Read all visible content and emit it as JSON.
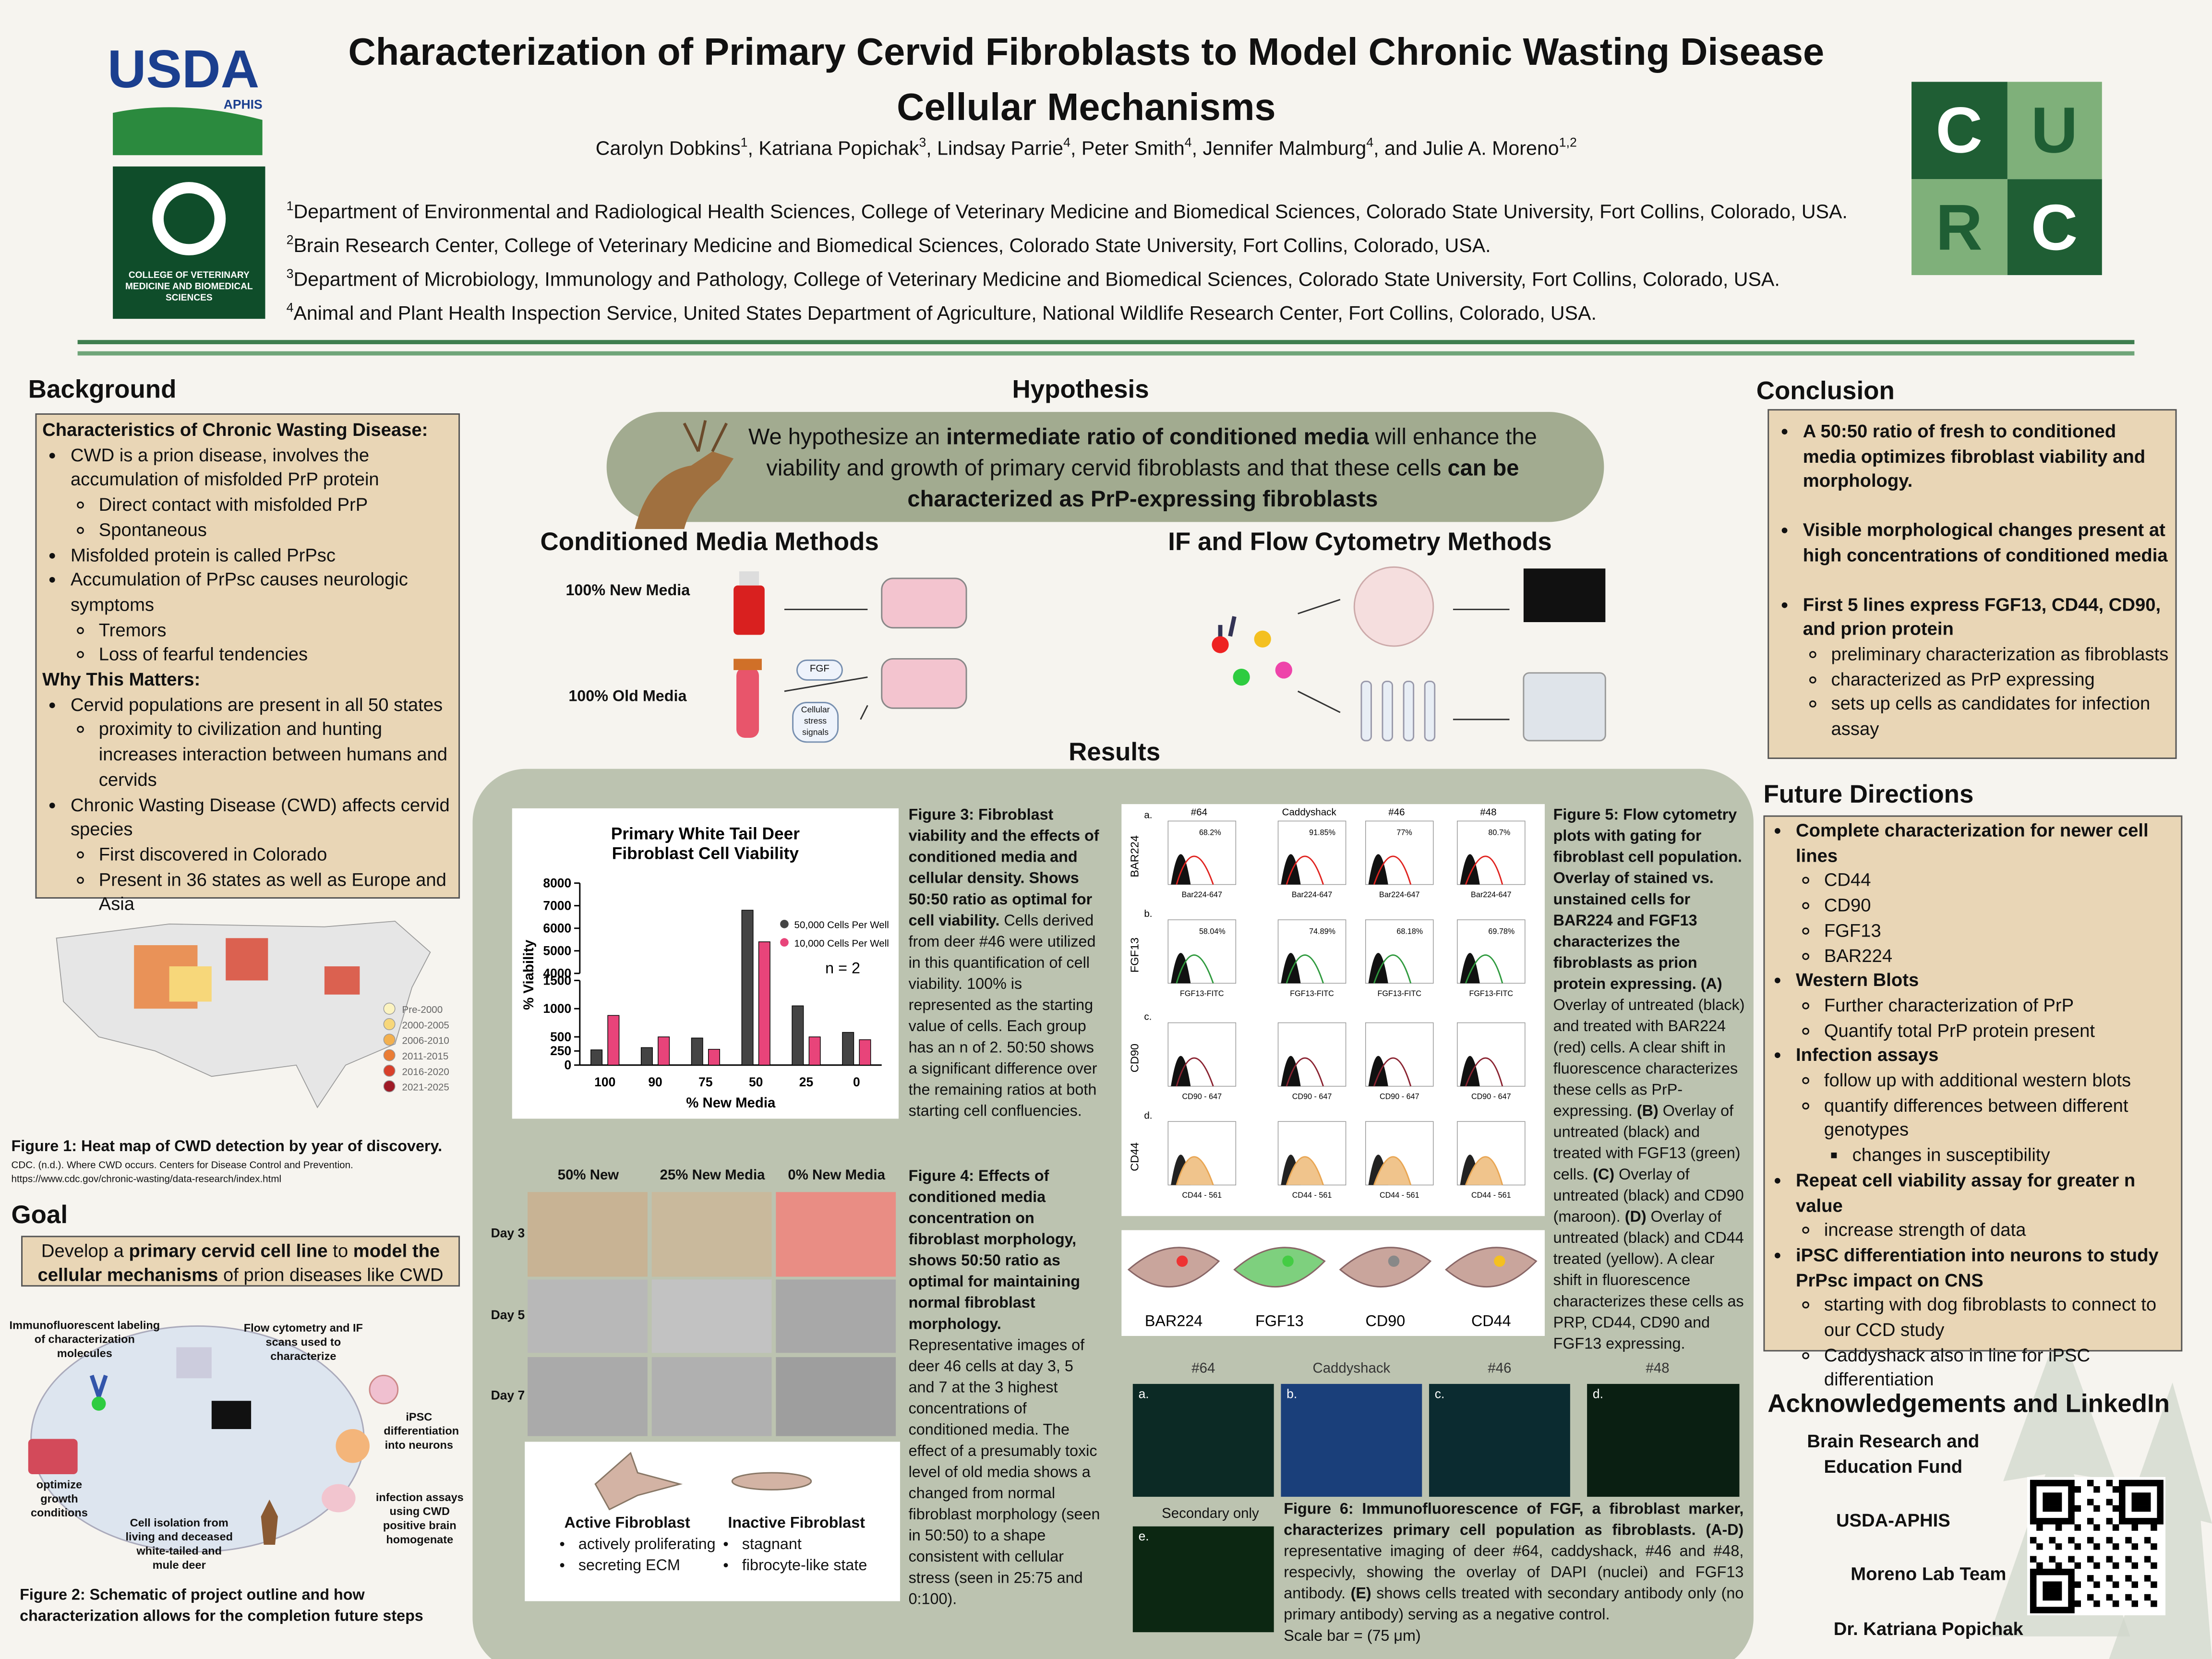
{
  "header": {
    "title_lines": [
      "Characterization of Primary Cervid Fibroblasts to Model Chronic Wasting Disease",
      "Cellular Mechanisms"
    ],
    "authors": [
      {
        "text": "Carolyn Dobkins"
      },
      {
        "text": "1",
        "sup": true
      },
      {
        "text": ", Katriana Popichak"
      },
      {
        "text": "3",
        "sup": true
      },
      {
        "text": ", Lindsay Parrie"
      },
      {
        "text": "4",
        "sup": true
      },
      {
        "text": ", Peter Smith"
      },
      {
        "text": "4",
        "sup": true
      },
      {
        "text": ", Jennifer Malmburg"
      },
      {
        "text": "4",
        "sup": true
      },
      {
        "text": ", and Julie A. Moreno"
      },
      {
        "text": "1,2",
        "sup": true
      }
    ],
    "affiliations": [
      [
        {
          "text": "1",
          "sup": true
        },
        {
          "text": "Department of Environmental and Radiological Health Sciences, College of Veterinary Medicine and Biomedical Sciences, Colorado State University, Fort Collins, Colorado, USA."
        }
      ],
      [
        {
          "text": "2",
          "sup": true
        },
        {
          "text": "Brain Research Center, College of Veterinary Medicine and Biomedical Sciences, Colorado State University, Fort Collins, Colorado, USA."
        }
      ],
      [
        {
          "text": "3",
          "sup": true
        },
        {
          "text": "Department of Microbiology, Immunology and Pathology, College of Veterinary Medicine and Biomedical Sciences, Colorado State University, Fort Collins, Colorado, USA."
        }
      ],
      [
        {
          "text": "4",
          "sup": true
        },
        {
          "text": "Animal and Plant Health Inspection Service, United States Department of Agriculture, National Wildlife Research Center, Fort Collins, Colorado, USA."
        }
      ]
    ]
  },
  "logos": {
    "usda": "USDA",
    "aphis": "APHIS",
    "cvmbs": "COLLEGE OF VETERINARY MEDICINE AND BIOMEDICAL SCIENCES",
    "curc": [
      "C",
      "U",
      "R",
      "C"
    ]
  },
  "background": {
    "heading": "Background",
    "items": [
      {
        "text": "Characteristics of Chronic Wasting Disease:",
        "level": 0,
        "bold": true
      },
      {
        "text": "CWD is a prion disease, involves the accumulation of misfolded PrP protein",
        "level": 1
      },
      {
        "text": "Direct contact with misfolded PrP",
        "level": 2
      },
      {
        "text": "Spontaneous",
        "level": 2
      },
      {
        "text": "Misfolded protein is called PrPsc",
        "level": 1
      },
      {
        "text": "Accumulation of PrPsc causes neurologic symptoms",
        "level": 1
      },
      {
        "text": "Tremors",
        "level": 2
      },
      {
        "text": "Loss of fearful tendencies",
        "level": 2
      },
      {
        "text": "Why This Matters:",
        "level": 0,
        "bold": true
      },
      {
        "text": "Cervid populations are present in all 50 states",
        "level": 1
      },
      {
        "text": "proximity to civilization and hunting increases interaction between humans and cervids",
        "level": 2
      },
      {
        "text": "Chronic Wasting Disease (CWD) affects cervid species",
        "level": 1
      },
      {
        "text": "First discovered in Colorado",
        "level": 2
      },
      {
        "text": "Present in 36 states as well as Europe and Asia",
        "level": 2
      }
    ]
  },
  "figure1": {
    "legend": [
      {
        "text": "Pre-2000",
        "color": "#fbf3c0"
      },
      {
        "text": "2000-2005",
        "color": "#f7d77a"
      },
      {
        "text": "2006-2010",
        "color": "#f3b04e"
      },
      {
        "text": "2011-2015",
        "color": "#ea7d35"
      },
      {
        "text": "2016-2020",
        "color": "#d8402b"
      },
      {
        "text": "2021-2025",
        "color": "#9e1a26"
      }
    ],
    "caption": "Figure 1: Heat map of CWD detection by year of discovery.",
    "citation": "CDC. (n.d.). Where CWD occurs. Centers for Disease Control and Prevention. https://www.cdc.gov/chronic-wasting/data-research/index.html"
  },
  "goal": {
    "heading": "Goal",
    "runs": [
      {
        "text": "Develop a "
      },
      {
        "text": "primary cervid cell line",
        "bold": true
      },
      {
        "text": " to "
      },
      {
        "text": "model the cellular mechanisms",
        "bold": true
      },
      {
        "text": " of prion diseases like CWD"
      }
    ]
  },
  "figure2": {
    "labels": [
      "Immunofluorescent labeling of characterization molecules",
      "Flow cytometry and IF scans used to characterize",
      "iPSC differentiation into neurons",
      "optimize growth conditions",
      "Cell isolation from living and deceased white-tailed and mule deer",
      "infection assays using CWD positive brain homogenate"
    ],
    "caption": "Figure 2: Schematic of project outline and how characterization allows for the completion future steps"
  },
  "hypothesis": {
    "heading": "Hypothesis",
    "runs": [
      {
        "text": "We hypothesize an "
      },
      {
        "text": "intermediate ratio of conditioned media",
        "bold": true
      },
      {
        "text": " will enhance the viability and growth of primary cervid fibroblasts and that these cells "
      },
      {
        "text": "can be characterized as PrP-expressing fibroblasts",
        "bold": true
      }
    ]
  },
  "methods": {
    "conditioned_heading": "Conditioned Media Methods",
    "new_media": "100% New Media",
    "old_media": "100% Old Media",
    "fgf": "FGF",
    "stress": "Cellular stress signals",
    "if_heading": "IF and Flow Cytometry Methods"
  },
  "results": {
    "heading": "Results",
    "figure3": [
      {
        "text": "Figure 3: Fibroblast viability and the effects of conditioned media and cellular density. Shows 50:50 ratio as optimal for cell viability.",
        "bold": true
      },
      {
        "text": " Cells derived from deer #46 were utilized in this quantification of cell viability. 100% is represented as the starting value of cells. Each group has an n of 2. 50:50 shows a significant difference over the remaining ratios at both starting cell confluencies."
      }
    ],
    "figure4": {
      "columns": [
        "50% New",
        "25% New Media",
        "0% New Media"
      ],
      "rows": [
        "Day 3",
        "Day 5",
        "Day 7"
      ],
      "active": {
        "title": "Active Fibroblast",
        "items": [
          "actively proliferating",
          "secreting ECM"
        ]
      },
      "inactive": {
        "title": "Inactive Fibroblast",
        "items": [
          "stagnant",
          "fibrocyte-like state"
        ]
      },
      "caption": [
        {
          "text": "Figure 4: Effects of conditioned media concentration on fibroblast morphology, shows 50:50 ratio as optimal for maintaining normal fibroblast morphology.",
          "bold": true
        },
        {
          "text": " Representative images of deer 46 cells at day 3, 5 and 7 at the 3 highest concentrations of conditioned media. The effect of a presumably toxic level of old media shows a changed from normal fibroblast morphology (seen in 50:50) to a shape consistent with cellular stress (seen in 25:75 and 0:100)."
        }
      ]
    },
    "figure5": {
      "columns": [
        "#64",
        "Caddyshack",
        "#46",
        "#48"
      ],
      "rows": [
        {
          "letter": "a.",
          "label": "BAR224",
          "color": "#e0231f",
          "xlabel": "Bar224-647",
          "percents": [
            "68.2%",
            "91.85%",
            "77%",
            "80.7%"
          ]
        },
        {
          "letter": "b.",
          "label": "FGF13",
          "color": "#2f9a3e",
          "xlabel": "FGF13-FITC",
          "percents": [
            "58.04%",
            "74.89%",
            "68.18%",
            "69.78%"
          ]
        },
        {
          "letter": "c.",
          "label": "CD90",
          "color": "#8a2331",
          "xlabel": "CD90 - 647"
        },
        {
          "letter": "d.",
          "label": "CD44",
          "color": "#e9a653",
          "xlabel": "CD44 - 561"
        }
      ],
      "caption": [
        {
          "text": "Figure 5: Flow cytometry plots with gating for fibroblast cell population. Overlay of stained vs. unstained cells for BAR224 and FGF13 characterizes the fibroblasts as prion protein expressing. (A)",
          "bold": true
        },
        {
          "text": " Overlay of untreated (black) and treated with BAR224 (red) cells. A clear shift in fluorescence characterizes these cells as PrP-expressing. "
        },
        {
          "text": "(B)",
          "bold": true
        },
        {
          "text": " Overlay of untreated (black) and treated with FGF13 (green) cells. "
        },
        {
          "text": "(C)",
          "bold": true
        },
        {
          "text": " Overlay of untreated (black) and CD90 (maroon). "
        },
        {
          "text": "(D)",
          "bold": true
        },
        {
          "text": " Overlay of untreated (black) and CD44 treated (yellow). A clear shift in fluorescence characterizes these cells as PRP, CD44, CD90 and FGF13 expressing."
        }
      ]
    },
    "cells": [
      "BAR224",
      "FGF13",
      "CD90",
      "CD44"
    ],
    "figure6": {
      "columns": [
        "#64",
        "Caddyshack",
        "#46",
        "#48"
      ],
      "letters": [
        "a.",
        "b.",
        "c.",
        "d.",
        "e."
      ],
      "secondary": "Secondary only",
      "caption": [
        {
          "text": "Figure 6: Immunofluorescence of FGF, a fibroblast marker, characterizes primary cell population as fibroblasts. (A-D)",
          "bold": true
        },
        {
          "text": " representative imaging of deer #64, caddyshack, #46 and #48, respecivly, showing the overlay of DAPI (nuclei) and FGF13 antibody. "
        },
        {
          "text": "(E)",
          "bold": true
        },
        {
          "text": " shows cells treated with secondary antibody only (no primary antibody) serving as a negative control."
        }
      ],
      "scale": "Scale bar = (75 μm)"
    }
  },
  "chart_data": {
    "type": "bar",
    "title_lines": [
      "Primary White Tail Deer",
      "Fibroblast Cell Viability"
    ],
    "x_label": "% New Media",
    "y_label": "% Viability",
    "categories": [
      "100",
      "90",
      "75",
      "50",
      "25",
      "0"
    ],
    "series": [
      {
        "name": "50,000 Cells Per Well",
        "color": "#444444",
        "values": [
          270,
          310,
          480,
          6800,
          1050,
          580
        ]
      },
      {
        "name": "10,000 Cells Per Well",
        "color": "#e8447a",
        "values": [
          880,
          500,
          280,
          5400,
          500,
          450
        ]
      }
    ],
    "ylim": [
      0,
      8000
    ],
    "y_break": [
      1500,
      4000
    ],
    "yticks": [
      0,
      250,
      500,
      1000,
      1500,
      4000,
      5000,
      6000,
      7000,
      8000
    ],
    "annotation": "n = 2"
  },
  "conclusion": {
    "heading": "Conclusion",
    "items": [
      {
        "text": "A 50:50 ratio of fresh to conditioned media optimizes fibroblast viability and morphology.",
        "level": 1,
        "bold": true
      },
      {
        "text": "Visible morphological changes present at high concentrations of conditioned media",
        "level": 1,
        "bold": true
      },
      {
        "text": "First 5 lines express FGF13, CD44, CD90, and prion protein",
        "level": 1,
        "bold": true
      },
      {
        "text": "preliminary characterization as fibroblasts",
        "level": 2
      },
      {
        "text": "characterized as PrP expressing",
        "level": 2
      },
      {
        "text": "sets up cells as candidates for infection assay",
        "level": 2
      }
    ]
  },
  "future": {
    "heading": "Future Directions",
    "items": [
      {
        "text": "Complete characterization for newer cell lines",
        "level": 1,
        "bold": true
      },
      {
        "text": "CD44",
        "level": 2
      },
      {
        "text": "CD90",
        "level": 2
      },
      {
        "text": "FGF13",
        "level": 2
      },
      {
        "text": "BAR224",
        "level": 2
      },
      {
        "text": "Western Blots",
        "level": 1,
        "bold": true
      },
      {
        "text": "Further characterization of PrP",
        "level": 2
      },
      {
        "text": "Quantify total PrP protein present",
        "level": 2
      },
      {
        "text": "Infection assays",
        "level": 1,
        "bold": true
      },
      {
        "text": "follow up with additional western blots",
        "level": 2
      },
      {
        "text": "quantify differences between different genotypes",
        "level": 2
      },
      {
        "text": "changes in susceptibility",
        "level": 3
      },
      {
        "text": "Repeat cell viability assay for greater n value",
        "level": 1,
        "bold": true
      },
      {
        "text": "increase strength of data",
        "level": 2
      },
      {
        "text": "iPSC differentiation into neurons to study PrPsc impact on CNS",
        "level": 1,
        "bold": true
      },
      {
        "text": "starting with dog fibroblasts to connect to our CCD study",
        "level": 2
      },
      {
        "text": "Caddyshack also in line for iPSC differentiation",
        "level": 2
      }
    ]
  },
  "acknowledgements": {
    "heading": "Acknowledgements and LinkedIn",
    "items": [
      "Brain Research and Education Fund",
      "USDA-APHIS",
      "Moreno Lab Team",
      "Dr. Katriana Popichak"
    ]
  }
}
